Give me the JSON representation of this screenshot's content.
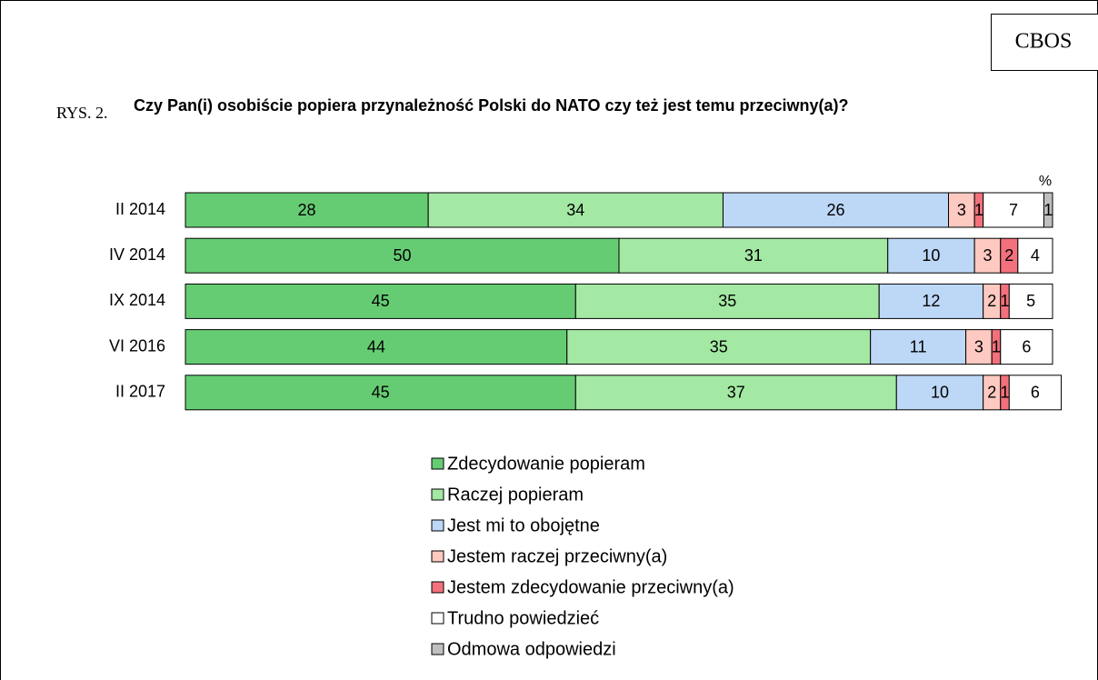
{
  "source": "CBOS",
  "figure_label": "RYS. 2.",
  "chart_data": {
    "type": "stacked_bar_horizontal",
    "title": "Czy Pan(i) osobiście popiera przynależność Polski do NATO czy też jest temu przeciwny(a)?",
    "unit_label": "%",
    "categories": [
      "II 2014",
      "IV 2014",
      "IX 2014",
      "VI 2016",
      "II 2017"
    ],
    "xlim": [
      0,
      100
    ],
    "series": [
      {
        "name": "Zdecydowanie popieram",
        "color": "#66cc73",
        "values": [
          28,
          50,
          45,
          44,
          45
        ]
      },
      {
        "name": "Raczej popieram",
        "color": "#a3e8a3",
        "values": [
          34,
          31,
          35,
          35,
          37
        ]
      },
      {
        "name": "Jest mi to obojętne",
        "color": "#bdd7f7",
        "values": [
          26,
          10,
          12,
          11,
          10
        ]
      },
      {
        "name": "Jestem raczej przeciwny(a)",
        "color": "#fdc9c1",
        "values": [
          3,
          3,
          2,
          3,
          2
        ]
      },
      {
        "name": "Jestem zdecydowanie przeciwny(a)",
        "color": "#f2717c",
        "values": [
          1,
          2,
          1,
          1,
          1
        ]
      },
      {
        "name": "Trudno powiedzieć",
        "color": "#ffffff",
        "values": [
          7,
          4,
          5,
          6,
          6
        ]
      },
      {
        "name": "Odmowa odpowiedzi",
        "color": "#bfbfbf",
        "values": [
          1,
          null,
          null,
          null,
          null
        ]
      }
    ]
  }
}
